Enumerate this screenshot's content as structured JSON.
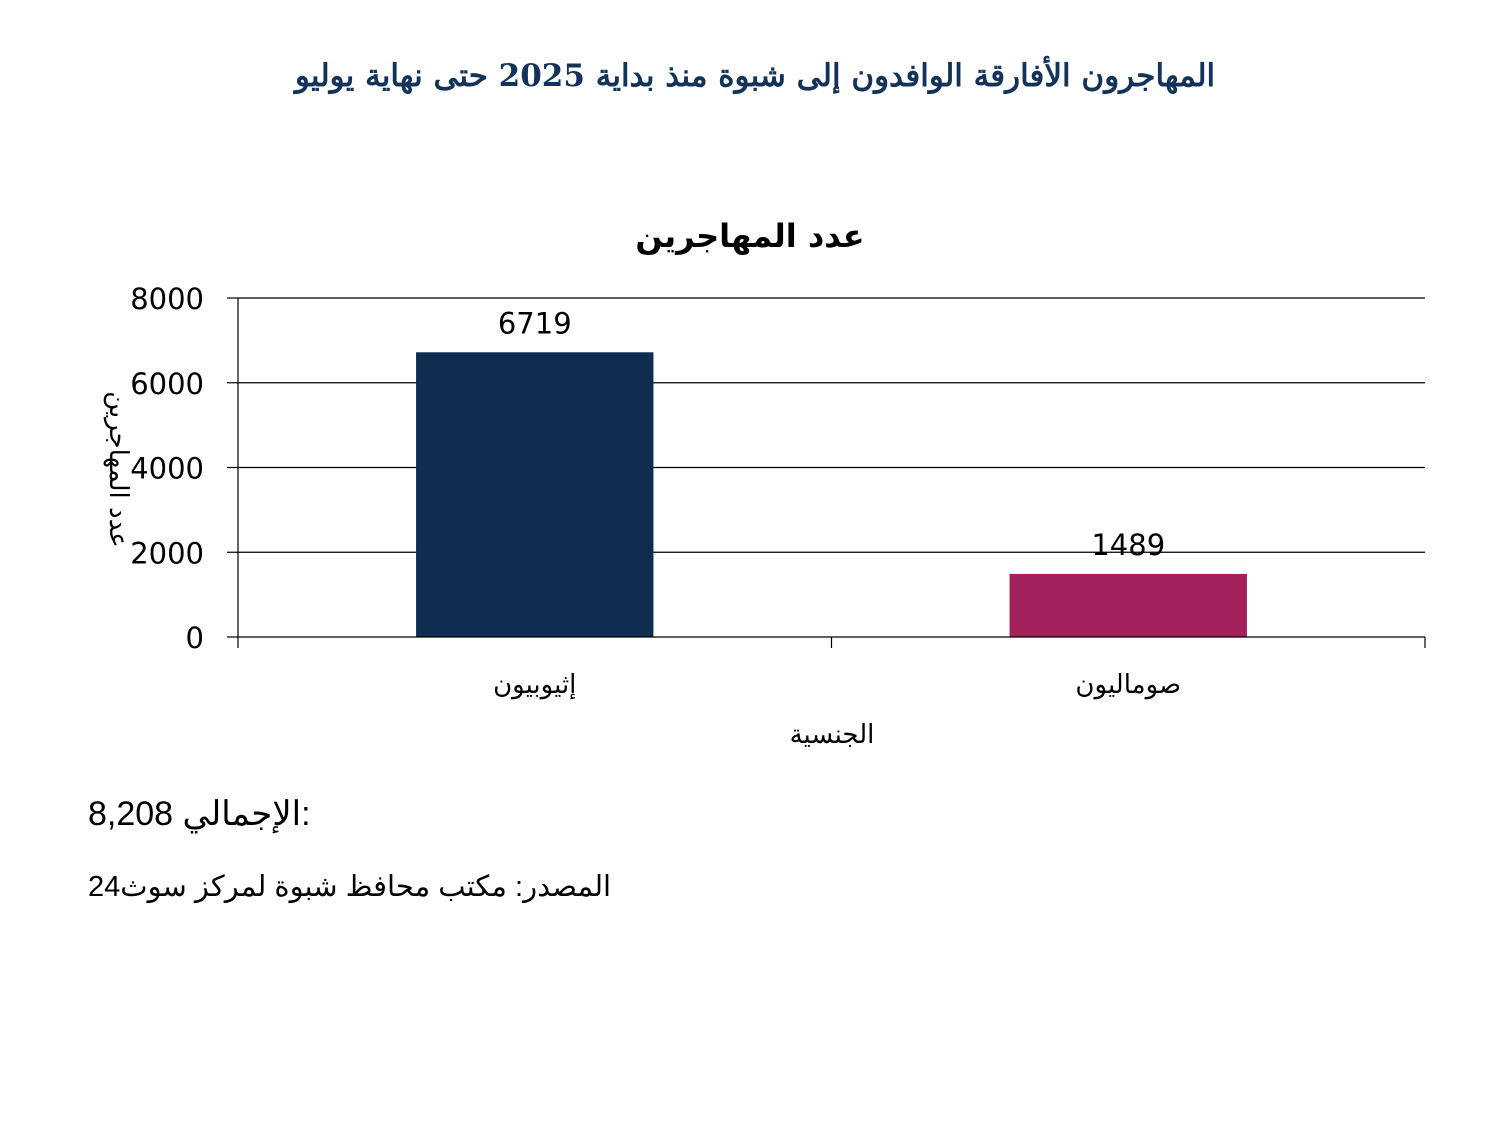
{
  "page": {
    "title": "المهاجرون الأفارقة الوافدون إلى شبوة منذ بداية 2025 حتى نهاية يوليو"
  },
  "chart_data": {
    "type": "bar",
    "title": "عدد المهاجرين",
    "xlabel": "الجنسية",
    "ylabel": "عدد المهاجرين",
    "categories": [
      "إثيوبيون",
      "صوماليون"
    ],
    "values": [
      6719,
      1489
    ],
    "bar_colors": [
      "#0e2d50",
      "#a2215a"
    ],
    "ylim": [
      0,
      8000
    ],
    "yticks": [
      "0",
      "2000",
      "4000",
      "6000",
      "8000"
    ],
    "grid": true,
    "legend": false,
    "data_labels": [
      "6719",
      "1489"
    ]
  },
  "summary": {
    "total_value": "8,208",
    "total_label": ":الإجمالي",
    "source": "المصدر: مكتب محافظ شبوة لمركز سوث24"
  }
}
